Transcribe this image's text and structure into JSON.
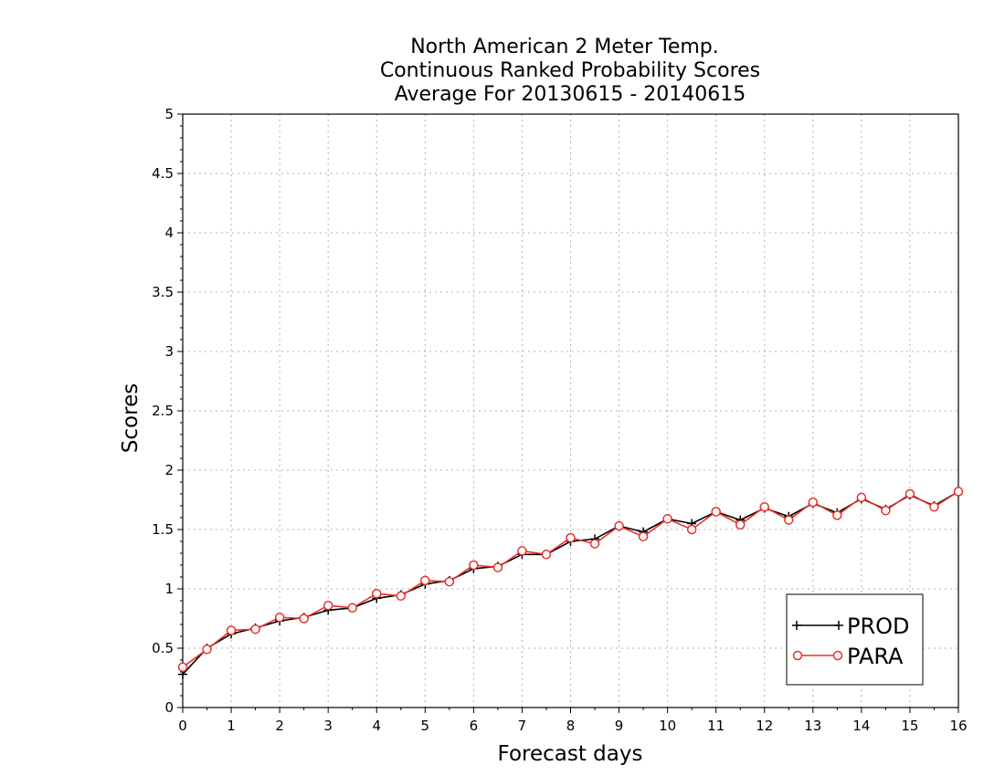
{
  "chart_data": {
    "type": "line",
    "title_lines": [
      "North American 2 Meter Temp.",
      "Continuous Ranked Probability Scores",
      "Average For 20130615 - 20140615"
    ],
    "xlabel": "Forecast days",
    "ylabel": "Scores",
    "xlim": [
      0,
      16
    ],
    "ylim": [
      0,
      5
    ],
    "x_ticks": [
      "0",
      "1",
      "2",
      "3",
      "4",
      "5",
      "6",
      "7",
      "8",
      "9",
      "10",
      "11",
      "12",
      "13",
      "14",
      "15",
      "16"
    ],
    "y_ticks": [
      "0",
      "0.5",
      "1",
      "1.5",
      "2",
      "2.5",
      "3",
      "3.5",
      "4",
      "4.5",
      "5"
    ],
    "grid": true,
    "legend_position": "bottom-right",
    "x": [
      0,
      0.5,
      1,
      1.5,
      2,
      2.5,
      3,
      3.5,
      4,
      4.5,
      5,
      5.5,
      6,
      6.5,
      7,
      7.5,
      8,
      8.5,
      9,
      9.5,
      10,
      10.5,
      11,
      11.5,
      12,
      12.5,
      13,
      13.5,
      14,
      14.5,
      15,
      15.5,
      16
    ],
    "series": [
      {
        "name": "PROD",
        "color": "#000000",
        "marker": "plus",
        "values": [
          0.28,
          0.5,
          0.62,
          0.67,
          0.73,
          0.76,
          0.82,
          0.84,
          0.92,
          0.95,
          1.04,
          1.07,
          1.17,
          1.19,
          1.29,
          1.29,
          1.4,
          1.42,
          1.53,
          1.48,
          1.59,
          1.55,
          1.65,
          1.58,
          1.68,
          1.61,
          1.72,
          1.64,
          1.76,
          1.67,
          1.79,
          1.7,
          1.82
        ]
      },
      {
        "name": "PARA",
        "color": "#e8302a",
        "marker": "circle",
        "values": [
          0.34,
          0.49,
          0.65,
          0.66,
          0.76,
          0.75,
          0.86,
          0.84,
          0.96,
          0.94,
          1.07,
          1.06,
          1.2,
          1.18,
          1.32,
          1.29,
          1.43,
          1.38,
          1.53,
          1.44,
          1.59,
          1.5,
          1.65,
          1.54,
          1.69,
          1.58,
          1.73,
          1.62,
          1.77,
          1.66,
          1.8,
          1.69,
          1.82
        ]
      }
    ]
  }
}
